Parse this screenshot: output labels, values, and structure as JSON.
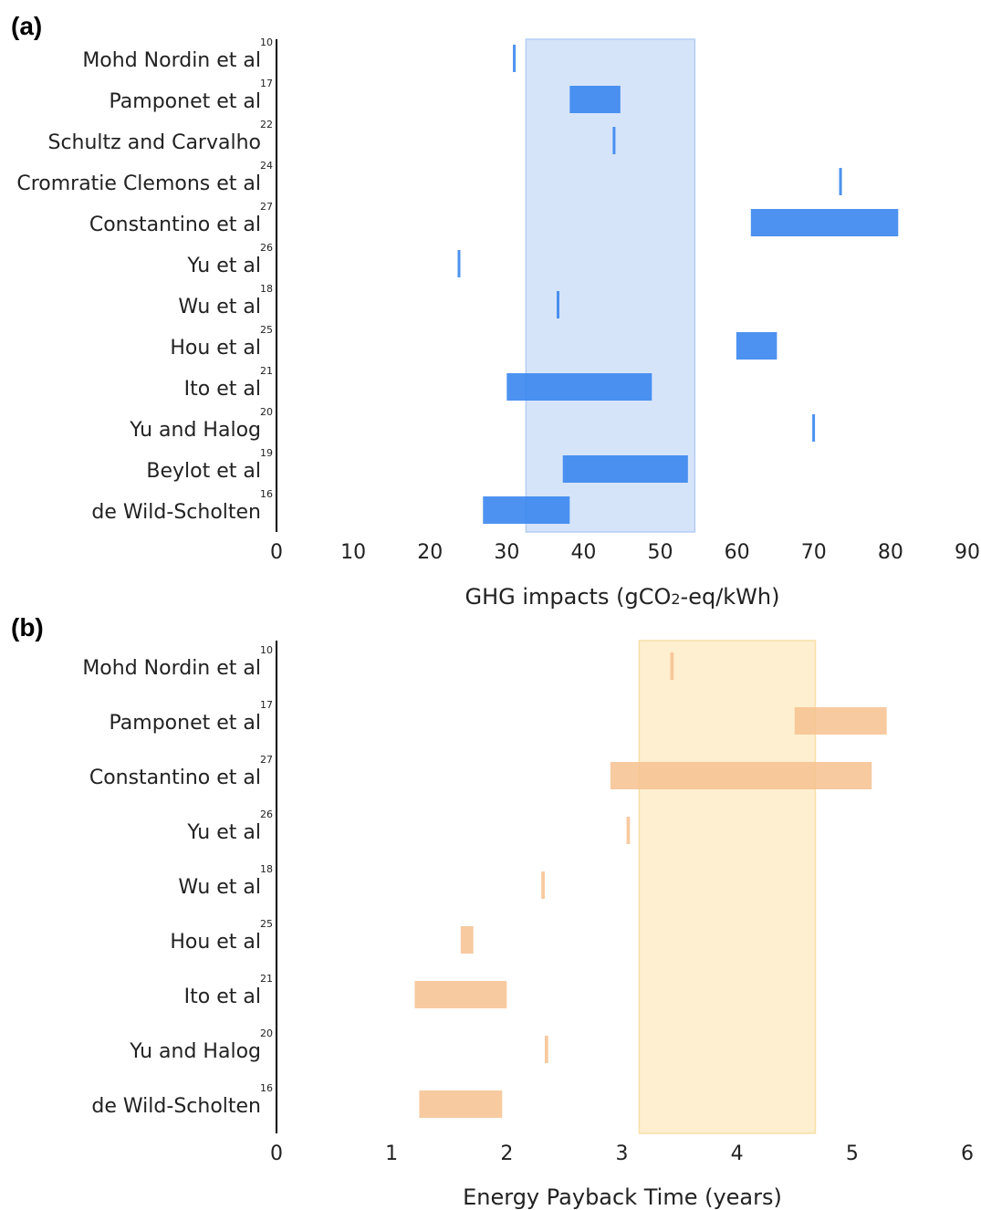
{
  "chart_data": [
    {
      "panel_label": "(a)",
      "type": "bar",
      "orientation": "horizontal-range",
      "xlabel_parts": [
        "GHG impacts (gCO",
        "2",
        "-eq/kWh)"
      ],
      "xlim": [
        0,
        90
      ],
      "xticks": [
        "0",
        "10",
        "20",
        "30",
        "40",
        "50",
        "60",
        "70",
        "80",
        "90"
      ],
      "highlight_band": {
        "range": [
          32.5,
          54.5
        ],
        "color": "#cfe0f8"
      },
      "bar_color": "#3a86ee",
      "categories": [
        {
          "name": "Mohd Nordin et al",
          "ref": "10",
          "range": [
            30.8,
            31.0
          ]
        },
        {
          "name": "Pamponet et al",
          "ref": "17",
          "range": [
            38.2,
            44.8
          ]
        },
        {
          "name": "Schultz and Carvalho",
          "ref": "22",
          "range": [
            43.8,
            44.0
          ]
        },
        {
          "name": "Cromratie Clemons et al",
          "ref": "24",
          "range": [
            73.3,
            73.6
          ]
        },
        {
          "name": "Constantino et al",
          "ref": "27",
          "range": [
            61.8,
            81.0
          ]
        },
        {
          "name": "Yu et al",
          "ref": "26",
          "range": [
            23.6,
            23.9
          ]
        },
        {
          "name": "Wu et al",
          "ref": "18",
          "range": [
            36.5,
            36.7
          ]
        },
        {
          "name": "Hou et al",
          "ref": "25",
          "range": [
            59.9,
            65.2
          ]
        },
        {
          "name": "Ito et al",
          "ref": "21",
          "range": [
            30.0,
            48.9
          ]
        },
        {
          "name": "Yu and Halog",
          "ref": "20",
          "range": [
            69.8,
            70.0
          ]
        },
        {
          "name": "Beylot et al",
          "ref": "19",
          "range": [
            37.3,
            53.6
          ]
        },
        {
          "name": "de Wild-Scholten",
          "ref": "16",
          "range": [
            26.9,
            38.2
          ]
        }
      ]
    },
    {
      "panel_label": "(b)",
      "type": "bar",
      "orientation": "horizontal-range",
      "xlabel": "Energy Payback Time (years)",
      "xlim": [
        0,
        6
      ],
      "xticks": [
        "0",
        "1",
        "2",
        "3",
        "4",
        "5",
        "6"
      ],
      "highlight_band": {
        "range": [
          3.15,
          4.68
        ],
        "color": "#fdefcd"
      },
      "bar_color": "#f6c18f",
      "categories": [
        {
          "name": "Mohd Nordin et al",
          "ref": "10",
          "range": [
            3.42,
            3.45
          ]
        },
        {
          "name": "Pamponet et al",
          "ref": "17",
          "range": [
            4.5,
            5.3
          ]
        },
        {
          "name": "Constantino et al",
          "ref": "27",
          "range": [
            2.9,
            5.17
          ]
        },
        {
          "name": "Yu et al",
          "ref": "26",
          "range": [
            3.04,
            3.07
          ]
        },
        {
          "name": "Wu et al",
          "ref": "18",
          "range": [
            2.3,
            2.33
          ]
        },
        {
          "name": "Hou et al",
          "ref": "25",
          "range": [
            1.6,
            1.71
          ]
        },
        {
          "name": "Ito et al",
          "ref": "21",
          "range": [
            1.2,
            2.0
          ]
        },
        {
          "name": "Yu and Halog",
          "ref": "20",
          "range": [
            2.33,
            2.36
          ]
        },
        {
          "name": "de Wild-Scholten",
          "ref": "16",
          "range": [
            1.24,
            1.96
          ]
        }
      ]
    }
  ]
}
